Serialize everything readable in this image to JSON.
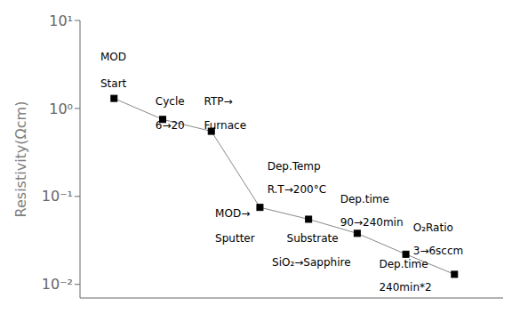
{
  "chart_data": {
    "type": "line",
    "x": [
      1,
      2,
      3,
      4,
      5,
      6,
      7,
      8
    ],
    "series": [
      {
        "type": "line",
        "color": "#888888",
        "line_style": "solid",
        "values": [
          1.3,
          0.75,
          0.55,
          0.075,
          0.055,
          0.038,
          0.022,
          0.013
        ]
      },
      {
        "type": "scatter",
        "color": "#000000",
        "marker": "square",
        "values": [
          1.3,
          0.75,
          0.55,
          0.075,
          0.055,
          0.038,
          0.022,
          0.013
        ]
      }
    ],
    "ylabel": "Resistivity(Ωcm)",
    "log": "y",
    "xlim": [
      0.3,
      9.0
    ],
    "xticks": [],
    "ylim": [
      0.007,
      10
    ],
    "yticks": [
      {
        "value": 0.01,
        "label": "10⁻²"
      },
      {
        "value": 0.1,
        "label": "10⁻¹"
      },
      {
        "value": 1,
        "label": "10⁰"
      },
      {
        "value": 10,
        "label": "10¹"
      }
    ],
    "tick_labels": "y",
    "grid": false,
    "annotations": [
      {
        "text": "MOD",
        "x": 0.72,
        "y": 3.5
      },
      {
        "text": "Start",
        "x": 0.72,
        "y": 1.75
      },
      {
        "text": "Cycle",
        "x": 1.85,
        "y": 1.1
      },
      {
        "text": "6→20",
        "x": 1.85,
        "y": 0.58
      },
      {
        "text": "RTP→",
        "x": 2.85,
        "y": 1.1
      },
      {
        "text": "Furnace",
        "x": 2.85,
        "y": 0.58
      },
      {
        "text": "MOD→",
        "x": 3.08,
        "y": 0.058
      },
      {
        "text": "Sputter",
        "x": 3.08,
        "y": 0.03
      },
      {
        "text": "Dep.Temp",
        "x": 4.15,
        "y": 0.2
      },
      {
        "text": "R.T→200°C",
        "x": 4.15,
        "y": 0.11
      },
      {
        "text": "Substrate",
        "x": 4.55,
        "y": 0.03
      },
      {
        "text": "SiO₂→Sapphire",
        "x": 4.25,
        "y": 0.016
      },
      {
        "text": "Dep.time",
        "x": 5.65,
        "y": 0.085
      },
      {
        "text": "90→240min",
        "x": 5.65,
        "y": 0.046
      },
      {
        "text": "O₂Ratio",
        "x": 7.15,
        "y": 0.04
      },
      {
        "text": "3→6sccm",
        "x": 7.15,
        "y": 0.022
      },
      {
        "text": "Dep.time",
        "x": 6.45,
        "y": 0.0155
      },
      {
        "text": "240min*2",
        "x": 6.45,
        "y": 0.0085
      }
    ]
  }
}
